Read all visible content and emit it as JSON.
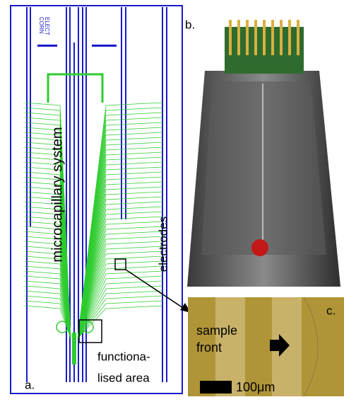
{
  "panel_a": {
    "label": "a.",
    "chip_text": [
      "CORN",
      "ELECT"
    ],
    "channel_label": "microcapillary system",
    "electrode_label": "electrodes",
    "area_label": [
      "functiona-",
      "lised area"
    ]
  },
  "panel_b": {
    "label": "b."
  },
  "panel_c": {
    "label": "c.",
    "front_label": [
      "sample",
      "front"
    ],
    "scale_label": "100μm"
  }
}
